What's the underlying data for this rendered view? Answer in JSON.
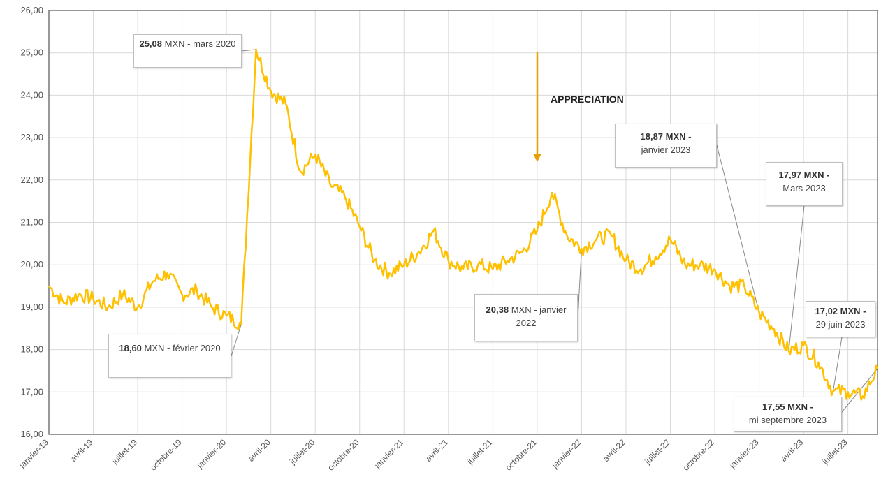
{
  "chart_data": {
    "type": "line",
    "title": "",
    "xlabel": "",
    "ylabel": "",
    "ylim": [
      16,
      26
    ],
    "y_ticks": [
      "16,00",
      "17,00",
      "18,00",
      "19,00",
      "20,00",
      "21,00",
      "22,00",
      "23,00",
      "24,00",
      "25,00",
      "26,00"
    ],
    "x_ticks": [
      "janvier-19",
      "avril-19",
      "juillet-19",
      "octobre-19",
      "janvier-20",
      "avril-20",
      "juillet-20",
      "octobre-20",
      "janvier-21",
      "avril-21",
      "juillet-21",
      "octobre-21",
      "janvier-22",
      "avril-22",
      "juillet-22",
      "octobre-22",
      "janvier-23",
      "avril-23",
      "juillet-23"
    ],
    "x_range": [
      "2019-01",
      "2023-09"
    ],
    "grid": true,
    "line_color": "#FFC000",
    "series": [
      {
        "name": "",
        "x": [
          "2019-01",
          "2019-02",
          "2019-03",
          "2019-04",
          "2019-05",
          "2019-06",
          "2019-07",
          "2019-08",
          "2019-09",
          "2019-10",
          "2019-11",
          "2019-12",
          "2020-01",
          "2020-02",
          "2020-03",
          "2020-04",
          "2020-05",
          "2020-06",
          "2020-07",
          "2020-08",
          "2020-09",
          "2020-10",
          "2020-11",
          "2020-12",
          "2021-01",
          "2021-02",
          "2021-03",
          "2021-04",
          "2021-05",
          "2021-06",
          "2021-07",
          "2021-08",
          "2021-09",
          "2021-10",
          "2021-11",
          "2021-12",
          "2022-01",
          "2022-02",
          "2022-03",
          "2022-04",
          "2022-05",
          "2022-06",
          "2022-07",
          "2022-08",
          "2022-09",
          "2022-10",
          "2022-11",
          "2022-12",
          "2023-01",
          "2023-02",
          "2023-03",
          "2023-04",
          "2023-05",
          "2023-06",
          "2023-07",
          "2023-08",
          "2023-09"
        ],
        "values": [
          19.5,
          19.1,
          19.3,
          19.2,
          19.0,
          19.3,
          19.0,
          19.6,
          19.8,
          19.3,
          19.4,
          19.0,
          18.8,
          18.6,
          25.08,
          24.1,
          23.8,
          22.2,
          22.6,
          21.9,
          21.6,
          20.9,
          20.1,
          19.8,
          20.0,
          20.3,
          20.8,
          20.1,
          19.9,
          20.0,
          19.9,
          20.1,
          20.3,
          20.8,
          21.7,
          20.7,
          20.38,
          20.6,
          20.7,
          20.1,
          19.9,
          20.2,
          20.6,
          20.0,
          20.0,
          19.9,
          19.5,
          19.5,
          18.87,
          18.5,
          17.97,
          18.1,
          17.7,
          17.02,
          17.0,
          16.9,
          17.55
        ]
      }
    ],
    "annotations": [
      {
        "bold": "25,08",
        "text": " MXN - mars 2020"
      },
      {
        "bold": "18,60",
        "text": " MXN - février 2020"
      },
      {
        "bold": "20,38",
        "text": " MXN - janvier 2022"
      },
      {
        "bold": "18,87 MXN -",
        "text": "janvier 2023"
      },
      {
        "bold": "17,97 MXN -",
        "text": "Mars 2023"
      },
      {
        "bold": "17,02 MXN -",
        "text": "29 juin 2023"
      },
      {
        "bold": "17,55 MXN -",
        "text": "mi septembre 2023"
      }
    ],
    "arrow_label": "APPRECIATION",
    "arrow_color": "#E8A000"
  }
}
